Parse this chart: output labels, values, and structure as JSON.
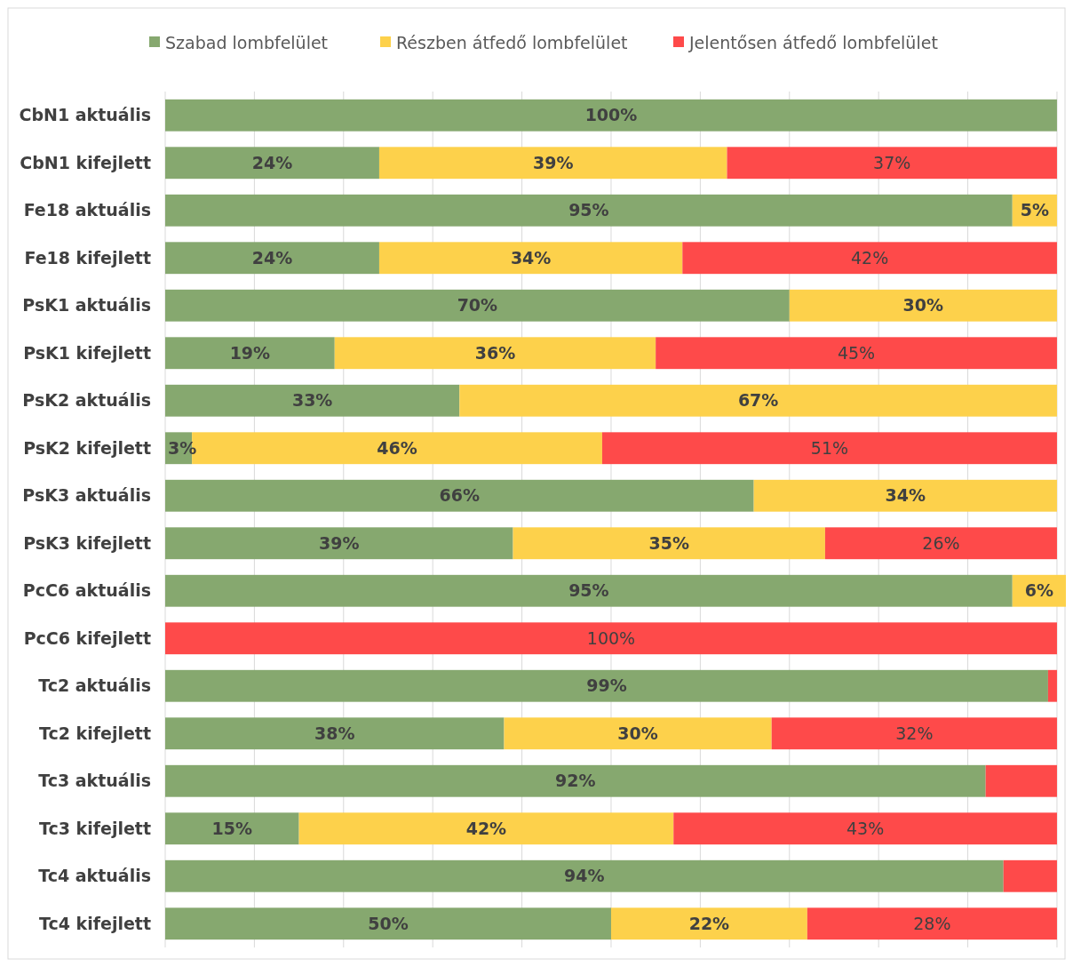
{
  "chart_data": {
    "type": "bar",
    "orientation": "horizontal",
    "stacked": true,
    "categories": [
      "CbN1 aktuális",
      "CbN1 kifejlett",
      "Fe18 aktuális",
      "Fe18 kifejlett",
      "PsK1 aktuális",
      "PsK1 kifejlett",
      "PsK2 aktuális",
      "PsK2 kifejlett",
      "PsK3 aktuális",
      "PsK3 kifejlett",
      "PcC6 aktuális",
      "PcC6 kifejlett",
      "Tc2 aktuális",
      "Tc2 kifejlett",
      "Tc3 aktuális",
      "Tc3 kifejlett",
      "Tc4 aktuális",
      "Tc4 kifejlett"
    ],
    "series": [
      {
        "name": "Szabad lombfelület",
        "color": "#86a86f",
        "values": [
          100,
          24,
          95,
          24,
          70,
          19,
          33,
          3,
          66,
          39,
          95,
          null,
          99,
          38,
          92,
          15,
          94,
          50
        ],
        "value_labels": [
          "100%",
          "24%",
          "95%",
          "24%",
          "70%",
          "19%",
          "33%",
          "3%",
          "66%",
          "39%",
          "95%",
          null,
          "99%",
          "38%",
          "92%",
          "15%",
          "94%",
          "50%"
        ]
      },
      {
        "name": "Részben átfedő lombfelület",
        "color": "#fdd14b",
        "values": [
          null,
          39,
          5,
          34,
          30,
          36,
          67,
          46,
          34,
          35,
          6,
          null,
          null,
          30,
          null,
          42,
          null,
          22
        ],
        "value_labels": [
          null,
          "39%",
          "5%",
          "34%",
          "30%",
          "36%",
          "67%",
          "46%",
          "34%",
          "35%",
          "6%",
          null,
          null,
          "30%",
          null,
          "42%",
          null,
          "22%"
        ]
      },
      {
        "name": "Jelentősen átfedő lombfelület",
        "color": "#fe4a4a",
        "values": [
          null,
          37,
          null,
          42,
          null,
          45,
          null,
          51,
          null,
          26,
          null,
          100,
          1,
          32,
          8,
          43,
          6,
          28
        ],
        "value_labels": [
          null,
          "37%",
          null,
          "42%",
          null,
          "45%",
          null,
          "51%",
          null,
          "26%",
          null,
          "100%",
          null,
          "32%",
          null,
          "43%",
          null,
          "28%"
        ]
      }
    ],
    "xlim": [
      0,
      101
    ],
    "xticks": [
      {
        "value": 0,
        "label": null
      },
      {
        "value": 10,
        "label": null
      },
      {
        "value": 20,
        "label": null
      },
      {
        "value": 30,
        "label": null
      },
      {
        "value": 40,
        "label": null
      },
      {
        "value": 50,
        "label": null
      },
      {
        "value": 60,
        "label": null
      },
      {
        "value": 70,
        "label": null
      },
      {
        "value": 80,
        "label": null
      },
      {
        "value": 90,
        "label": null
      },
      {
        "value": 100,
        "label": null
      }
    ],
    "tick_labels": "y",
    "grid": "x",
    "legend": "top"
  }
}
